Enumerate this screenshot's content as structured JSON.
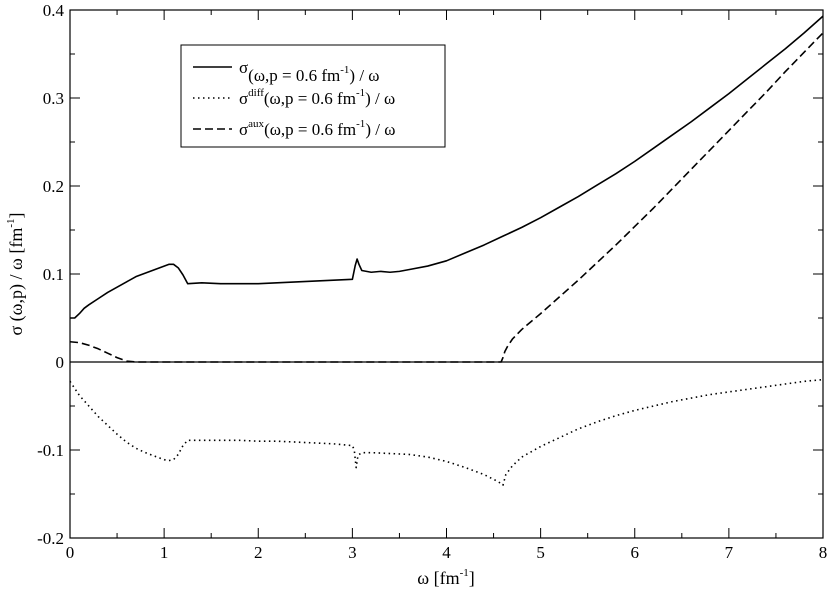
{
  "chart_data": {
    "type": "line",
    "xlabel": "ω [fm",
    "xlabel_sup": "-1",
    "xlabel_tail": "]",
    "ylabel": "σ (ω,p) / ω  [fm",
    "ylabel_sup": "-1",
    "ylabel_tail": "]",
    "xlim": [
      0,
      8
    ],
    "ylim": [
      -0.2,
      0.4
    ],
    "x_ticks": [
      0,
      1,
      2,
      3,
      4,
      5,
      6,
      7,
      8
    ],
    "x_tick_labels": [
      "0",
      "1",
      "2",
      "3",
      "4",
      "5",
      "6",
      "7",
      "8"
    ],
    "y_ticks": [
      -0.2,
      -0.1,
      0,
      0.1,
      0.2,
      0.3,
      0.4
    ],
    "y_tick_labels": [
      "-0.2",
      "-0.1",
      "0",
      "0.1",
      "0.2",
      "0.3",
      "0.4"
    ],
    "grid": false,
    "zero_line": true,
    "legend_position": "top-left",
    "series": [
      {
        "name": "σ(ω,p = 0.6 fm-1) / ω",
        "legend_main": "σ",
        "legend_sup_a": "",
        "legend_mid": "(ω,p = 0.6 fm",
        "legend_sup_b": "-1",
        "legend_tail": ") / ω",
        "style": "solid",
        "x": [
          0.0,
          0.05,
          0.1,
          0.15,
          0.2,
          0.3,
          0.4,
          0.5,
          0.6,
          0.7,
          0.8,
          0.9,
          1.0,
          1.05,
          1.1,
          1.15,
          1.2,
          1.25,
          1.4,
          1.6,
          1.8,
          2.0,
          2.2,
          2.4,
          2.6,
          2.8,
          3.0,
          3.03,
          3.05,
          3.07,
          3.1,
          3.2,
          3.3,
          3.4,
          3.5,
          3.6,
          3.8,
          4.0,
          4.2,
          4.4,
          4.6,
          4.8,
          5.0,
          5.2,
          5.4,
          5.6,
          5.8,
          6.0,
          6.2,
          6.4,
          6.6,
          6.8,
          7.0,
          7.2,
          7.4,
          7.6,
          7.8,
          8.0
        ],
        "y": [
          0.05,
          0.05,
          0.055,
          0.061,
          0.065,
          0.072,
          0.079,
          0.085,
          0.091,
          0.097,
          0.101,
          0.105,
          0.109,
          0.111,
          0.111,
          0.107,
          0.099,
          0.089,
          0.09,
          0.089,
          0.089,
          0.089,
          0.09,
          0.091,
          0.092,
          0.093,
          0.094,
          0.1095,
          0.117,
          0.111,
          0.104,
          0.102,
          0.103,
          0.102,
          0.103,
          0.105,
          0.109,
          0.115,
          0.124,
          0.133,
          0.143,
          0.153,
          0.164,
          0.176,
          0.188,
          0.201,
          0.214,
          0.228,
          0.243,
          0.258,
          0.273,
          0.289,
          0.305,
          0.322,
          0.339,
          0.356,
          0.374,
          0.393
        ]
      },
      {
        "name": "σdiff(ω,p = 0.6 fm-1) / ω",
        "legend_main": "σ",
        "legend_sup_a": "diff",
        "legend_mid": "(ω,p = 0.6 fm",
        "legend_sup_b": "-1",
        "legend_tail": ") / ω",
        "style": "dotted",
        "x": [
          0.0,
          0.05,
          0.1,
          0.2,
          0.3,
          0.4,
          0.5,
          0.6,
          0.7,
          0.8,
          0.9,
          1.0,
          1.05,
          1.1,
          1.15,
          1.2,
          1.25,
          1.4,
          1.6,
          1.8,
          2.0,
          2.2,
          2.4,
          2.6,
          2.8,
          3.0,
          3.02,
          3.04,
          3.06,
          3.1,
          3.2,
          3.4,
          3.6,
          3.8,
          4.0,
          4.2,
          4.4,
          4.55,
          4.6,
          4.63,
          4.7,
          4.8,
          5.0,
          5.2,
          5.4,
          5.6,
          5.8,
          6.0,
          6.2,
          6.4,
          6.6,
          6.8,
          7.0,
          7.2,
          7.4,
          7.6,
          7.8,
          8.0
        ],
        "y": [
          -0.022,
          -0.03,
          -0.038,
          -0.05,
          -0.062,
          -0.072,
          -0.082,
          -0.091,
          -0.098,
          -0.103,
          -0.107,
          -0.111,
          -0.112,
          -0.111,
          -0.105,
          -0.095,
          -0.089,
          -0.089,
          -0.089,
          -0.089,
          -0.09,
          -0.09,
          -0.091,
          -0.092,
          -0.093,
          -0.095,
          -0.1,
          -0.12,
          -0.106,
          -0.103,
          -0.103,
          -0.104,
          -0.105,
          -0.108,
          -0.113,
          -0.12,
          -0.128,
          -0.136,
          -0.14,
          -0.128,
          -0.118,
          -0.108,
          -0.096,
          -0.086,
          -0.076,
          -0.068,
          -0.061,
          -0.055,
          -0.05,
          -0.045,
          -0.041,
          -0.037,
          -0.034,
          -0.031,
          -0.028,
          -0.025,
          -0.022,
          -0.02
        ]
      },
      {
        "name": "σaux(ω,p = 0.6 fm-1) / ω",
        "legend_main": "σ",
        "legend_sup_a": "aux",
        "legend_mid": "(ω,p = 0.6 fm",
        "legend_sup_b": "-1",
        "legend_tail": ") / ω",
        "style": "dashed",
        "x": [
          0.0,
          0.1,
          0.2,
          0.3,
          0.4,
          0.5,
          0.6,
          0.7,
          1.0,
          2.0,
          3.0,
          4.0,
          4.5,
          4.58,
          4.6,
          4.62,
          4.65,
          4.7,
          4.8,
          4.9,
          5.0,
          5.2,
          5.4,
          5.6,
          5.8,
          6.0,
          6.2,
          6.4,
          6.6,
          6.8,
          7.0,
          7.2,
          7.4,
          7.6,
          7.8,
          8.0
        ],
        "y": [
          0.023,
          0.022,
          0.019,
          0.015,
          0.01,
          0.005,
          0.001,
          0.0,
          0.0,
          0.0,
          0.0,
          0.0,
          0.0,
          0.0,
          0.005,
          0.012,
          0.018,
          0.026,
          0.037,
          0.046,
          0.055,
          0.074,
          0.093,
          0.113,
          0.133,
          0.154,
          0.175,
          0.197,
          0.219,
          0.241,
          0.263,
          0.285,
          0.307,
          0.33,
          0.352,
          0.374
        ]
      }
    ]
  }
}
